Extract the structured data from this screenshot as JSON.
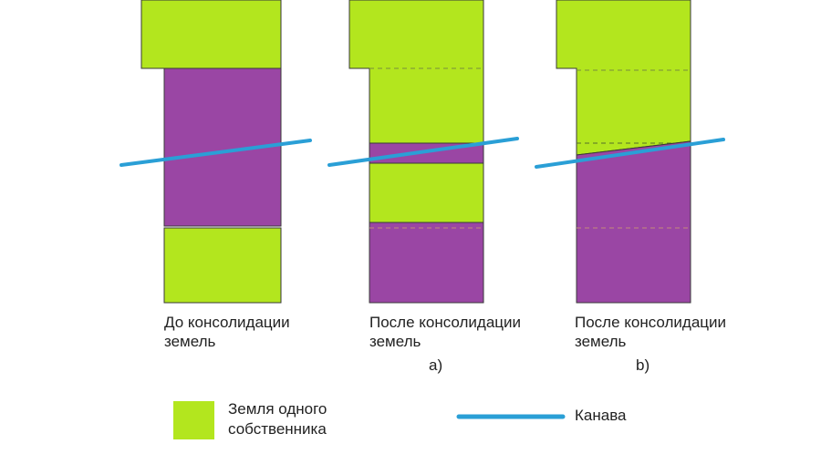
{
  "colors": {
    "owner_a_land": "#b3e61e",
    "owner_b_land": "#9a46a4",
    "ditch": "#2a9fd6",
    "outline": "#3a3a3a",
    "dashed_boundary_on_green": "#7a8f3c",
    "dashed_boundary_on_purple": "#c48a7a"
  },
  "panels": [
    {
      "caption_line1": "До консолидации",
      "caption_line2": "земель",
      "variant_label": ""
    },
    {
      "caption_line1": "После консолидации",
      "caption_line2": "земель",
      "variant_label": "a)"
    },
    {
      "caption_line1": "После консолидации",
      "caption_line2": "земель",
      "variant_label": "b)"
    }
  ],
  "legend": {
    "owner_land_line1": "Земля одного",
    "owner_land_line2": "собственника",
    "ditch_label": "Канава"
  }
}
